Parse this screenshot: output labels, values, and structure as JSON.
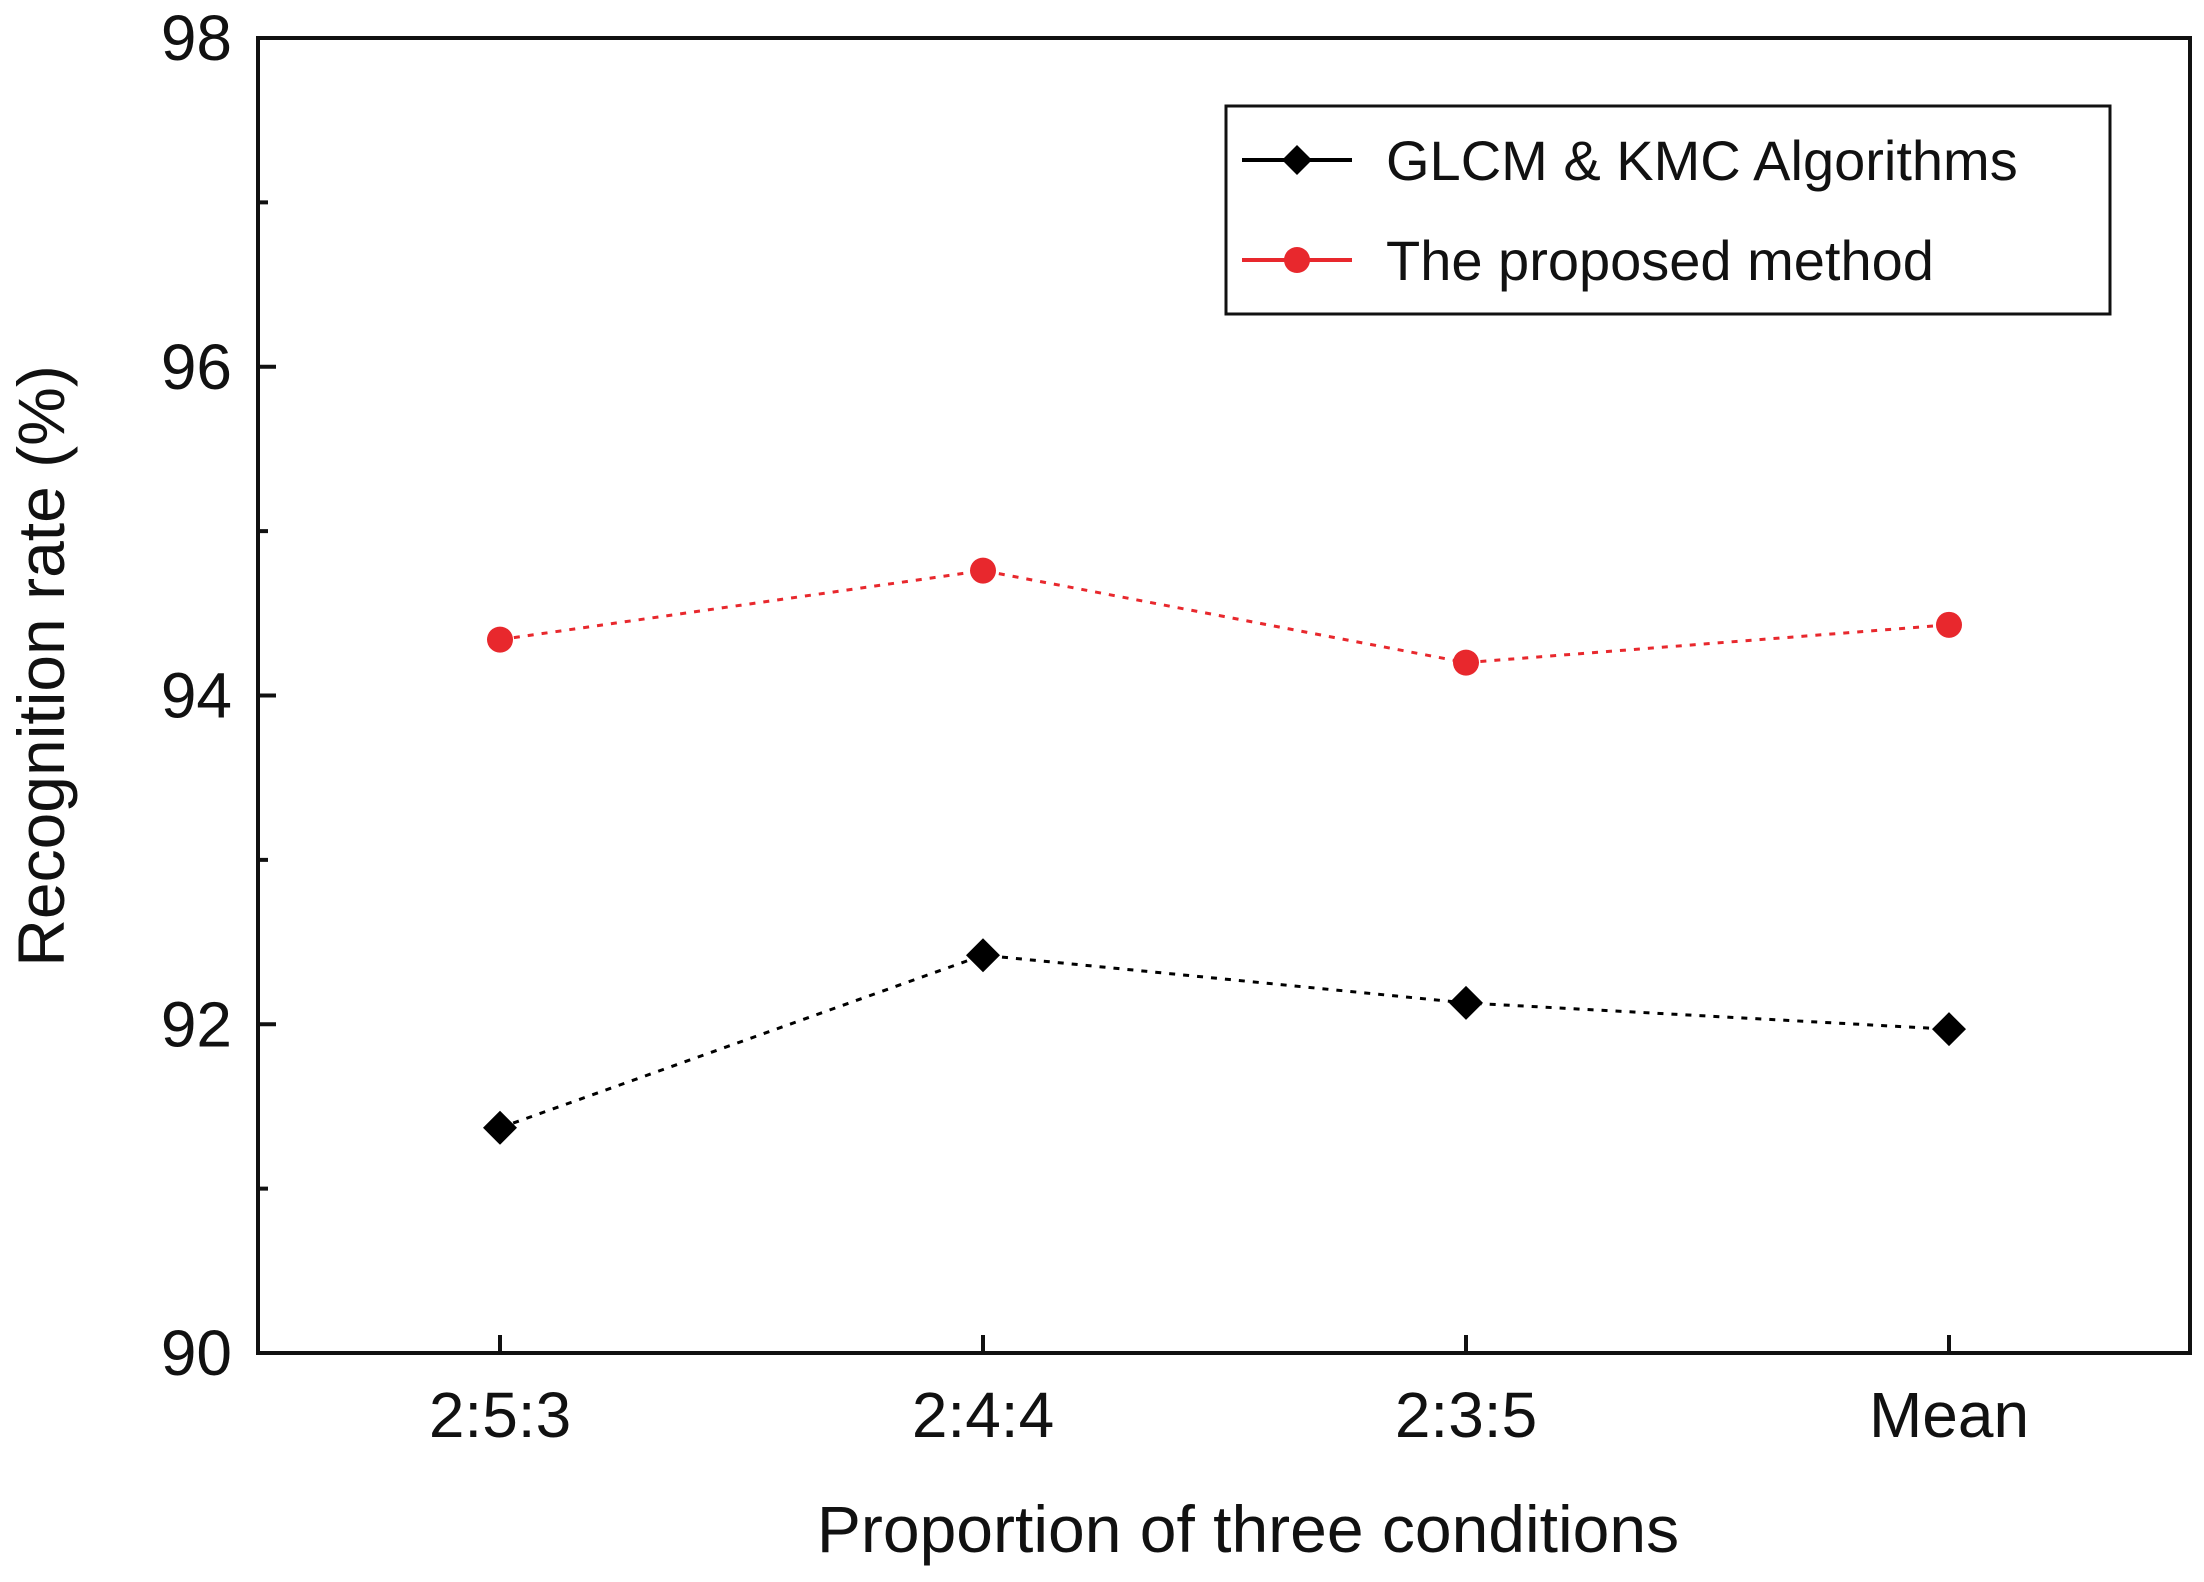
{
  "chart_data": {
    "type": "line",
    "title": "",
    "xlabel": "Proportion of three conditions",
    "ylabel": "Recognition rate (%)",
    "categories": [
      "2:5:3",
      "2:4:4",
      "2:3:5",
      "Mean"
    ],
    "ylim": [
      90,
      98
    ],
    "yticks": [
      "90",
      "92",
      "94",
      "96",
      "98"
    ],
    "grid": false,
    "legend_position": "top-right",
    "series": [
      {
        "name": "GLCM & KMC Algorithms",
        "values": [
          91.37,
          92.42,
          92.13,
          91.97
        ],
        "color": "#000000",
        "marker": "diamond",
        "line_style": "dotted"
      },
      {
        "name": "The proposed method",
        "values": [
          94.34,
          94.76,
          94.2,
          94.43
        ],
        "color": "#e8282d",
        "marker": "circle",
        "line_style": "dotted"
      }
    ]
  }
}
